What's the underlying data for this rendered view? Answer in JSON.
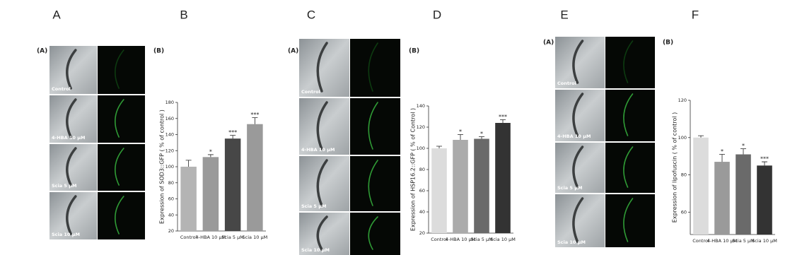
{
  "panel_letters": [
    "A",
    "B",
    "C",
    "D",
    "E",
    "F"
  ],
  "image_panels": [
    {
      "tag": "(A)",
      "labels": [
        "Control",
        "4-HBA 10 μM",
        "Scia 5 μM",
        "Scia 10 μM"
      ]
    },
    {
      "tag": "(A)",
      "labels": [
        "Control",
        "4-HBA 10 μM",
        "Scia 5 μM",
        "Scia 10 μM"
      ]
    },
    {
      "tag": "(A)",
      "labels": [
        "Control",
        "4-HBA 10 μM",
        "Scia 5 μM",
        "Scia 10 μM"
      ]
    }
  ],
  "chart_data": [
    {
      "type": "bar",
      "tag": "(B)",
      "y_label": "Expression of SOD3::GFP ( % of control )",
      "categories": [
        "Control",
        "4-HBA 10 μM",
        "Scia 5 μM",
        "Scia 10 μM"
      ],
      "values": [
        100,
        112,
        135,
        153
      ],
      "errors": [
        8,
        3,
        4,
        8
      ],
      "significance": [
        null,
        "*",
        "***",
        "***"
      ],
      "colors": [
        "#b4b4b4",
        "#9a9a9a",
        "#474747",
        "#9a9a9a"
      ],
      "ylim": [
        20,
        180
      ],
      "yticks": [
        20,
        40,
        60,
        80,
        100,
        120,
        140,
        160,
        180
      ]
    },
    {
      "type": "bar",
      "tag": "(B)",
      "y_label": "Expression of HSP16.2::GFP ( % of Control )",
      "categories": [
        "Control",
        "4-HBA 10 μM",
        "Scia 5 μM",
        "Scia 10 μM"
      ],
      "values": [
        100,
        108,
        109,
        124
      ],
      "errors": [
        2,
        5,
        2,
        3
      ],
      "significance": [
        null,
        "*",
        "*",
        "***"
      ],
      "colors": [
        "#dcdcdc",
        "#ababab",
        "#6a6a6a",
        "#333333"
      ],
      "ylim": [
        20,
        140
      ],
      "yticks": [
        20,
        40,
        60,
        80,
        100,
        120,
        140
      ]
    },
    {
      "type": "bar",
      "tag": "(B)",
      "y_label": "Expression of lipofuscin  ( % of control )",
      "categories": [
        "Control",
        "4-HBA 10 μM",
        "Scia 5 μM",
        "Scia 10 μM"
      ],
      "values": [
        100,
        87,
        91,
        85
      ],
      "errors": [
        1,
        4,
        3,
        2
      ],
      "significance": [
        null,
        "*",
        "*",
        "***"
      ],
      "colors": [
        "#dcdcdc",
        "#9a9a9a",
        "#6a6a6a",
        "#333333"
      ],
      "ylim": [
        48,
        120
      ],
      "yticks": [
        60,
        80,
        100,
        120
      ]
    }
  ]
}
